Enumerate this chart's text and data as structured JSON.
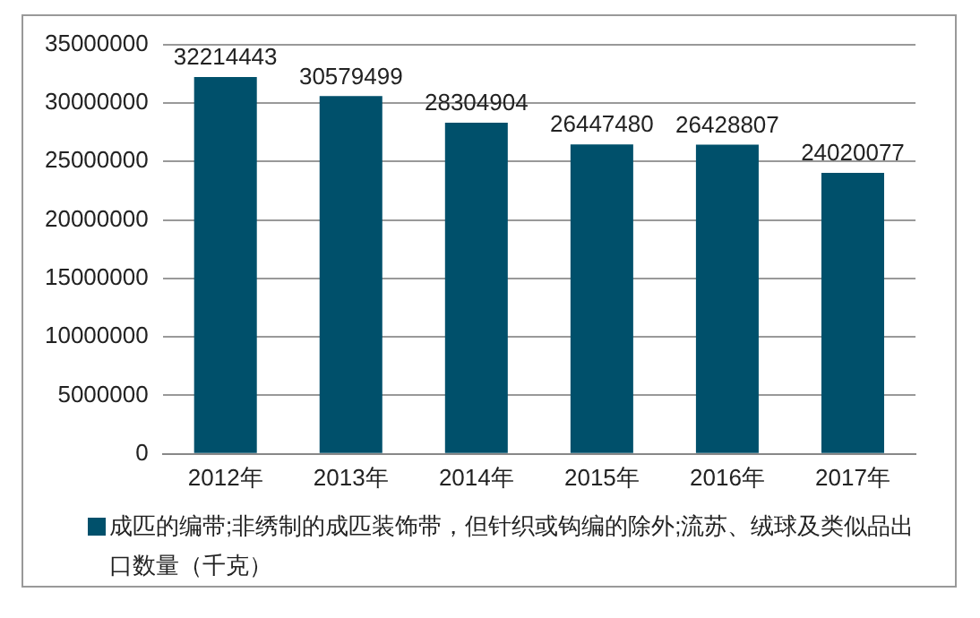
{
  "chart_data": {
    "type": "bar",
    "categories": [
      "2012年",
      "2013年",
      "2014年",
      "2015年",
      "2016年",
      "2017年"
    ],
    "series": [
      {
        "name": "成匹的编带;非绣制的成匹装饰带，但针织或钩编的除外;流苏、绒球及类似品出口数量（千克）",
        "color": "#00506b",
        "values": [
          32214443,
          30579499,
          28304904,
          26447480,
          26428807,
          24020077
        ]
      }
    ],
    "ylim": [
      0,
      35000000
    ],
    "yticks": [
      0,
      5000000,
      10000000,
      15000000,
      20000000,
      25000000,
      30000000,
      35000000
    ],
    "grid": "y",
    "legend": "bottom",
    "data_labels": true
  }
}
